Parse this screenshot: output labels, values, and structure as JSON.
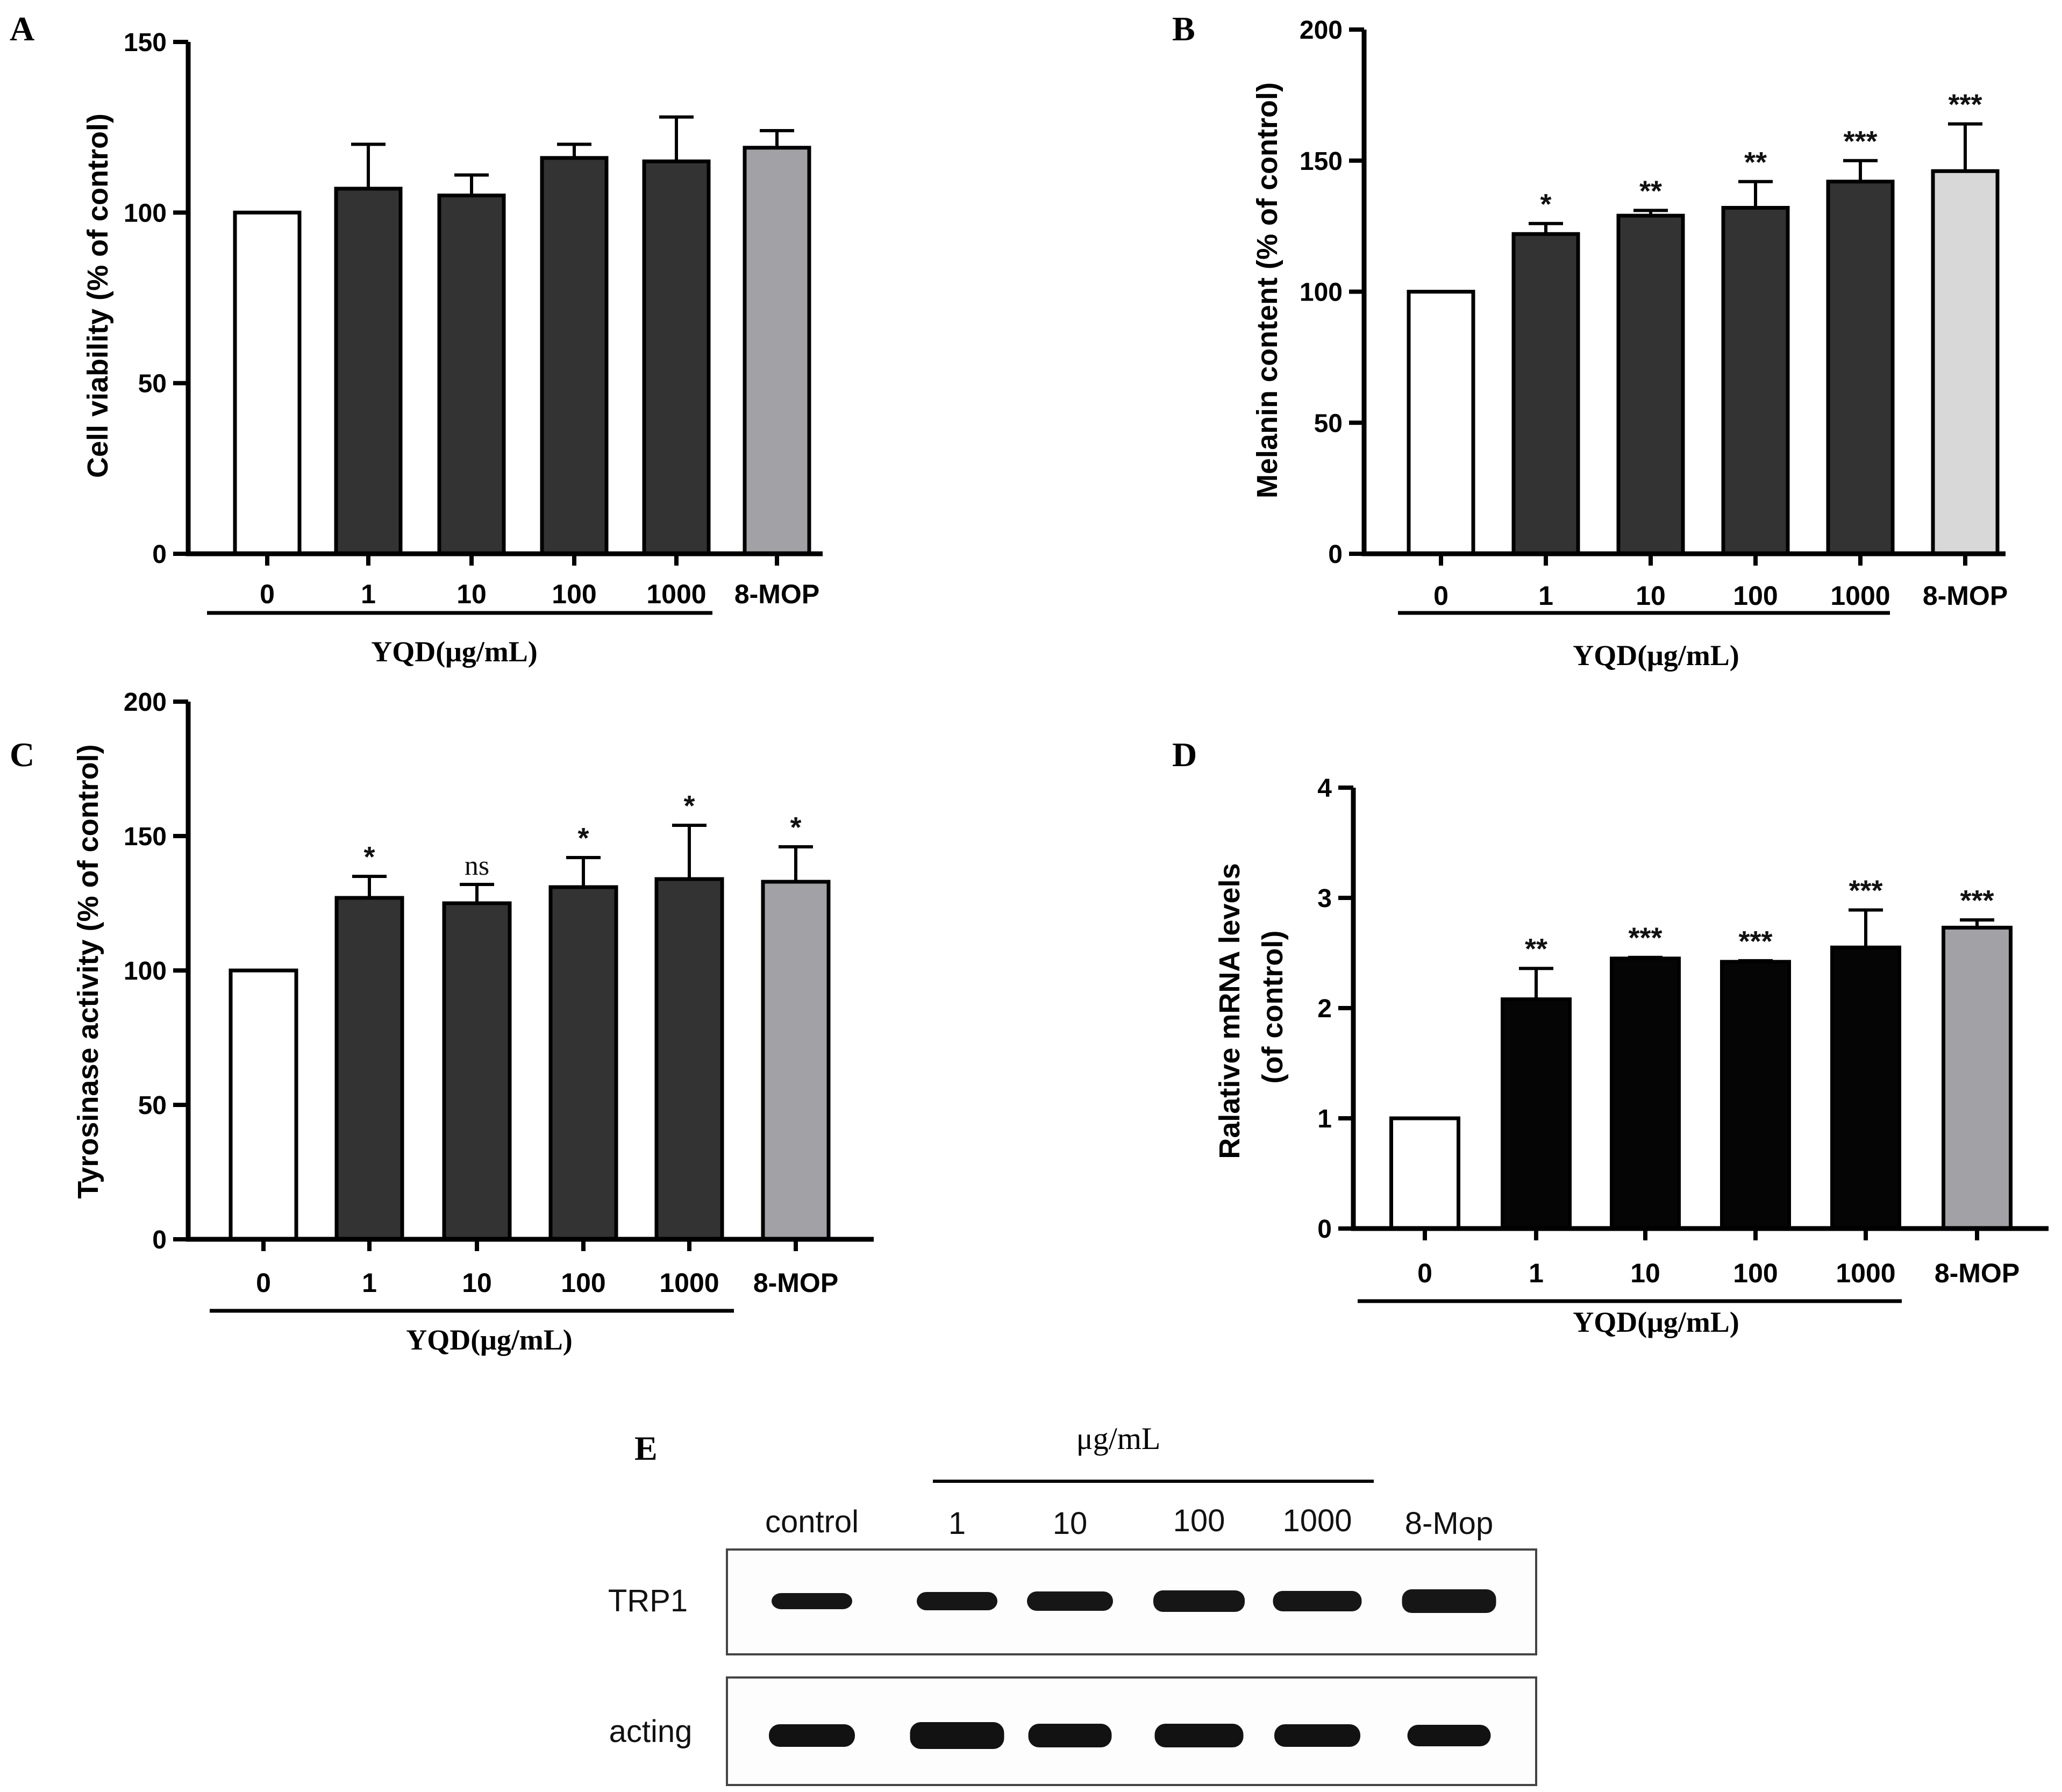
{
  "chart_data": [
    {
      "panel": "A",
      "type": "bar",
      "ylabel": "Cell viability (% of control)",
      "ylim": [
        0,
        150
      ],
      "yticks": [
        0,
        50,
        100,
        150
      ],
      "categories": [
        "0",
        "1",
        "10",
        "100",
        "1000",
        "8-MOP"
      ],
      "values": [
        100,
        107,
        105,
        116,
        115,
        119
      ],
      "errors": [
        0,
        13,
        6,
        4,
        13,
        5
      ],
      "significance": [
        "",
        "",
        "",
        "",
        "",
        ""
      ],
      "colors": [
        "#ffffff",
        "#333333",
        "#333333",
        "#333333",
        "#333333",
        "#a2a2a6"
      ],
      "group_label": "YQD(μg/mL)"
    },
    {
      "panel": "B",
      "type": "bar",
      "ylabel": "Melanin content (% of control)",
      "ylim": [
        0,
        200
      ],
      "yticks": [
        0,
        50,
        100,
        150,
        200
      ],
      "categories": [
        "0",
        "1",
        "10",
        "100",
        "1000",
        "8-MOP"
      ],
      "values": [
        100,
        122,
        129,
        132,
        142,
        146
      ],
      "errors": [
        0,
        4,
        2,
        10,
        8,
        18
      ],
      "significance": [
        "",
        "*",
        "**",
        "**",
        "***",
        "***"
      ],
      "colors": [
        "#ffffff",
        "#333333",
        "#333333",
        "#333333",
        "#333333",
        "#d8d8d8"
      ],
      "group_label": "YQD(μg/mL)"
    },
    {
      "panel": "C",
      "type": "bar",
      "ylabel": "Tyrosinase activity (% of control)",
      "ylim": [
        0,
        200
      ],
      "yticks": [
        0,
        50,
        100,
        150,
        200
      ],
      "categories": [
        "0",
        "1",
        "10",
        "100",
        "1000",
        "8-MOP"
      ],
      "values": [
        100,
        127,
        125,
        131,
        134,
        133
      ],
      "errors": [
        0,
        8,
        7,
        11,
        20,
        13
      ],
      "significance": [
        "",
        "*",
        "ns",
        "*",
        "*",
        "*"
      ],
      "colors": [
        "#ffffff",
        "#333333",
        "#333333",
        "#333333",
        "#333333",
        "#a2a2a6"
      ],
      "group_label": "YQD(μg/mL)"
    },
    {
      "panel": "D",
      "type": "bar",
      "ylabel_lines": [
        "Ralative mRNA levels",
        "(of control)"
      ],
      "ylim": [
        0,
        4
      ],
      "yticks": [
        0,
        1,
        2,
        3,
        4
      ],
      "categories": [
        "0",
        "1",
        "10",
        "100",
        "1000",
        "8-MOP"
      ],
      "values": [
        1.0,
        2.08,
        2.45,
        2.42,
        2.55,
        2.73
      ],
      "errors": [
        0,
        0.28,
        0.01,
        0.01,
        0.34,
        0.07
      ],
      "significance": [
        "",
        "**",
        "***",
        "***",
        "***",
        "***"
      ],
      "colors": [
        "#ffffff",
        "#050505",
        "#050505",
        "#050505",
        "#050505",
        "#a2a2a6"
      ],
      "group_label": "YQD(μg/mL)"
    }
  ],
  "blot": {
    "panel": "E",
    "unit_label": "μg/mL",
    "lanes": [
      "control",
      "1",
      "10",
      "100",
      "1000",
      "8-Mop"
    ],
    "rows": [
      "TRP1",
      "acting"
    ]
  }
}
